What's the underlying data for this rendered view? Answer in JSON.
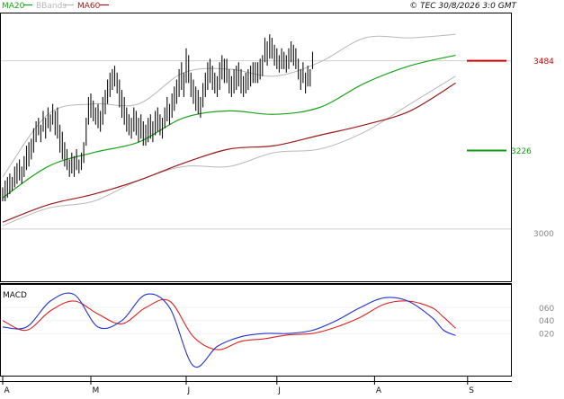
{
  "header": {
    "legend_ma20": "MA20",
    "legend_bbands": "BBands",
    "legend_ma60": "MA60",
    "copyright": "© TEC 30/8/2026 3:0 GMT"
  },
  "colors": {
    "ma20": "#19a319",
    "ma60": "#9b1a1a",
    "bbands": "#b8b8b8",
    "price_bar": "#111111",
    "resistance": "#cc0000",
    "support": "#119911",
    "macd": "#2233cc",
    "signal": "#dd2222",
    "grid": "#cfcfcf",
    "axis_text": "#888888"
  },
  "chart_data": [
    {
      "type": "line",
      "title": "",
      "panel": "price",
      "x_tick_labels": [
        "A",
        "M",
        "J",
        "J",
        "A",
        "S"
      ],
      "x_tick_index": [
        0,
        37,
        77,
        115,
        156,
        195
      ],
      "ylim": [
        28.5,
        36.2
      ],
      "y_ticks": [
        {
          "value": 30.0,
          "label": "3000"
        }
      ],
      "grid": true,
      "levels": [
        {
          "name": "resistance",
          "value": 34.84,
          "label": "3484"
        },
        {
          "name": "support",
          "value": 32.26,
          "label": "3226"
        }
      ],
      "ohlc": {
        "high": [
          31.2,
          31.4,
          31.5,
          31.6,
          31.5,
          31.8,
          31.9,
          32.0,
          31.8,
          32.1,
          32.4,
          32.5,
          32.6,
          32.9,
          33.1,
          33.2,
          33.0,
          33.4,
          33.2,
          33.5,
          33.3,
          33.6,
          33.4,
          33.5,
          33.0,
          32.8,
          32.5,
          32.3,
          32.0,
          32.2,
          32.1,
          32.3,
          32.0,
          32.2,
          32.5,
          33.2,
          33.8,
          33.9,
          33.7,
          33.5,
          33.6,
          33.4,
          33.8,
          34.0,
          34.3,
          34.5,
          34.6,
          34.7,
          34.5,
          34.3,
          34.0,
          33.8,
          33.5,
          33.3,
          33.2,
          33.5,
          33.4,
          33.2,
          33.3,
          33.1,
          33.0,
          33.2,
          33.3,
          33.1,
          33.4,
          33.5,
          33.3,
          33.2,
          33.5,
          33.8,
          33.6,
          33.9,
          34.1,
          34.3,
          34.6,
          34.8,
          34.5,
          35.2,
          35.0,
          34.5,
          34.3,
          34.1,
          34.0,
          33.8,
          34.2,
          34.5,
          34.8,
          34.9,
          34.7,
          34.5,
          34.4,
          34.8,
          35.0,
          34.9,
          34.9,
          34.6,
          34.4,
          34.6,
          34.7,
          34.8,
          34.6,
          34.4,
          34.5,
          34.6,
          34.7,
          34.8,
          34.8,
          34.8,
          34.9,
          35.0,
          35.5,
          35.4,
          35.6,
          35.5,
          35.3,
          35.2,
          35.0,
          35.2,
          35.1,
          35.0,
          35.2,
          35.4,
          35.3,
          35.2,
          34.9,
          34.6,
          34.8,
          34.5,
          34.7,
          34.6,
          35.1
        ],
        "low": [
          30.8,
          30.8,
          30.9,
          31.0,
          31.1,
          31.2,
          31.3,
          31.4,
          31.3,
          31.5,
          31.7,
          31.8,
          32.0,
          32.2,
          32.5,
          32.7,
          32.5,
          32.8,
          32.6,
          32.9,
          32.8,
          33.0,
          32.7,
          32.6,
          32.2,
          32.0,
          31.8,
          31.7,
          31.5,
          31.6,
          31.5,
          31.7,
          31.6,
          31.7,
          31.9,
          32.4,
          33.0,
          33.2,
          33.1,
          33.0,
          32.9,
          32.8,
          33.0,
          33.3,
          33.6,
          33.8,
          34.0,
          34.1,
          33.9,
          33.5,
          33.2,
          33.0,
          32.8,
          32.7,
          32.6,
          32.8,
          32.7,
          32.5,
          32.6,
          32.4,
          32.4,
          32.5,
          32.6,
          32.5,
          32.7,
          32.8,
          32.7,
          32.6,
          32.9,
          33.1,
          33.0,
          33.2,
          33.4,
          33.6,
          33.8,
          34.0,
          33.8,
          34.2,
          34.2,
          33.8,
          33.6,
          33.4,
          33.3,
          33.2,
          33.5,
          33.8,
          34.0,
          34.2,
          34.0,
          33.9,
          33.8,
          34.0,
          34.3,
          34.2,
          34.2,
          33.9,
          33.8,
          33.9,
          34.0,
          34.1,
          33.9,
          33.8,
          33.9,
          34.0,
          34.1,
          34.2,
          34.2,
          34.2,
          34.3,
          34.4,
          34.8,
          34.7,
          34.9,
          34.9,
          34.7,
          34.6,
          34.5,
          34.6,
          34.6,
          34.5,
          34.6,
          34.8,
          34.7,
          34.6,
          34.3,
          34.0,
          34.2,
          33.9,
          34.1,
          34.1,
          34.6
        ]
      },
      "series": [
        {
          "name": "MA20",
          "x": [
            0,
            19,
            38,
            57,
            76,
            95,
            114,
            133,
            152,
            171,
            190
          ],
          "values": [
            30.9,
            31.8,
            32.2,
            32.5,
            33.2,
            33.4,
            33.3,
            33.5,
            34.2,
            34.7,
            35.0
          ]
        },
        {
          "name": "MA60",
          "x": [
            0,
            19,
            38,
            57,
            76,
            95,
            114,
            133,
            152,
            171,
            190
          ],
          "values": [
            30.2,
            30.7,
            31.0,
            31.4,
            31.9,
            32.3,
            32.4,
            32.7,
            33.0,
            33.4,
            34.2
          ]
        },
        {
          "name": "BBands upper",
          "x": [
            0,
            19,
            38,
            57,
            76,
            95,
            114,
            133,
            152,
            171,
            190
          ],
          "values": [
            31.5,
            33.3,
            33.6,
            33.6,
            34.5,
            34.6,
            34.4,
            34.8,
            35.5,
            35.5,
            35.6
          ]
        },
        {
          "name": "BBands lower",
          "x": [
            0,
            19,
            38,
            57,
            76,
            95,
            114,
            133,
            152,
            171,
            190
          ],
          "values": [
            30.1,
            30.6,
            30.8,
            31.4,
            31.8,
            31.8,
            32.2,
            32.3,
            32.8,
            33.6,
            34.4
          ]
        }
      ]
    },
    {
      "type": "line",
      "title": "MACD",
      "panel": "macd",
      "ylim": [
        -0.45,
        0.95
      ],
      "y_ticks": [
        {
          "value": 0.6,
          "label": "060"
        },
        {
          "value": 0.4,
          "label": "040"
        },
        {
          "value": 0.2,
          "label": "020"
        }
      ],
      "series": [
        {
          "name": "MACD",
          "x": [
            0,
            10,
            20,
            30,
            40,
            50,
            60,
            70,
            80,
            90,
            100,
            110,
            120,
            130,
            140,
            150,
            160,
            170,
            180,
            185,
            190
          ],
          "values": [
            0.3,
            0.3,
            0.7,
            0.8,
            0.3,
            0.4,
            0.8,
            0.6,
            -0.3,
            0.0,
            0.15,
            0.2,
            0.2,
            0.25,
            0.4,
            0.6,
            0.75,
            0.7,
            0.45,
            0.25,
            0.17
          ]
        },
        {
          "name": "Signal",
          "x": [
            0,
            10,
            20,
            30,
            40,
            50,
            60,
            70,
            80,
            90,
            100,
            110,
            120,
            130,
            140,
            150,
            160,
            170,
            180,
            185,
            190
          ],
          "values": [
            0.4,
            0.25,
            0.55,
            0.7,
            0.5,
            0.35,
            0.6,
            0.7,
            0.15,
            -0.05,
            0.08,
            0.12,
            0.18,
            0.2,
            0.3,
            0.45,
            0.65,
            0.7,
            0.6,
            0.45,
            0.28
          ]
        }
      ]
    }
  ]
}
